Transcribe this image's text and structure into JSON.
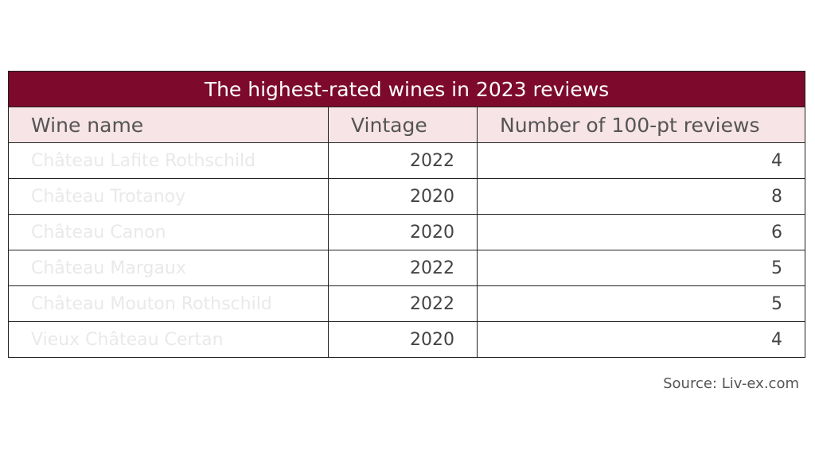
{
  "table": {
    "title": "The highest-rated wines in 2023 reviews",
    "header": [
      "Wine name",
      "Vintage",
      "Number of 100-pt reviews"
    ],
    "rows": [
      [
        "Château Lafite Rothschild",
        "2022",
        "4"
      ],
      [
        "Château Trotanoy",
        "2020",
        "8"
      ],
      [
        "Château Canon",
        "2020",
        "6"
      ],
      [
        "Château Margaux",
        "2022",
        "5"
      ],
      [
        "Château Mouton Rothschild",
        "2022",
        "5"
      ],
      [
        "Vieux Château Certan",
        "2020",
        "4"
      ]
    ]
  },
  "source": "Source: Liv-ex.com"
}
